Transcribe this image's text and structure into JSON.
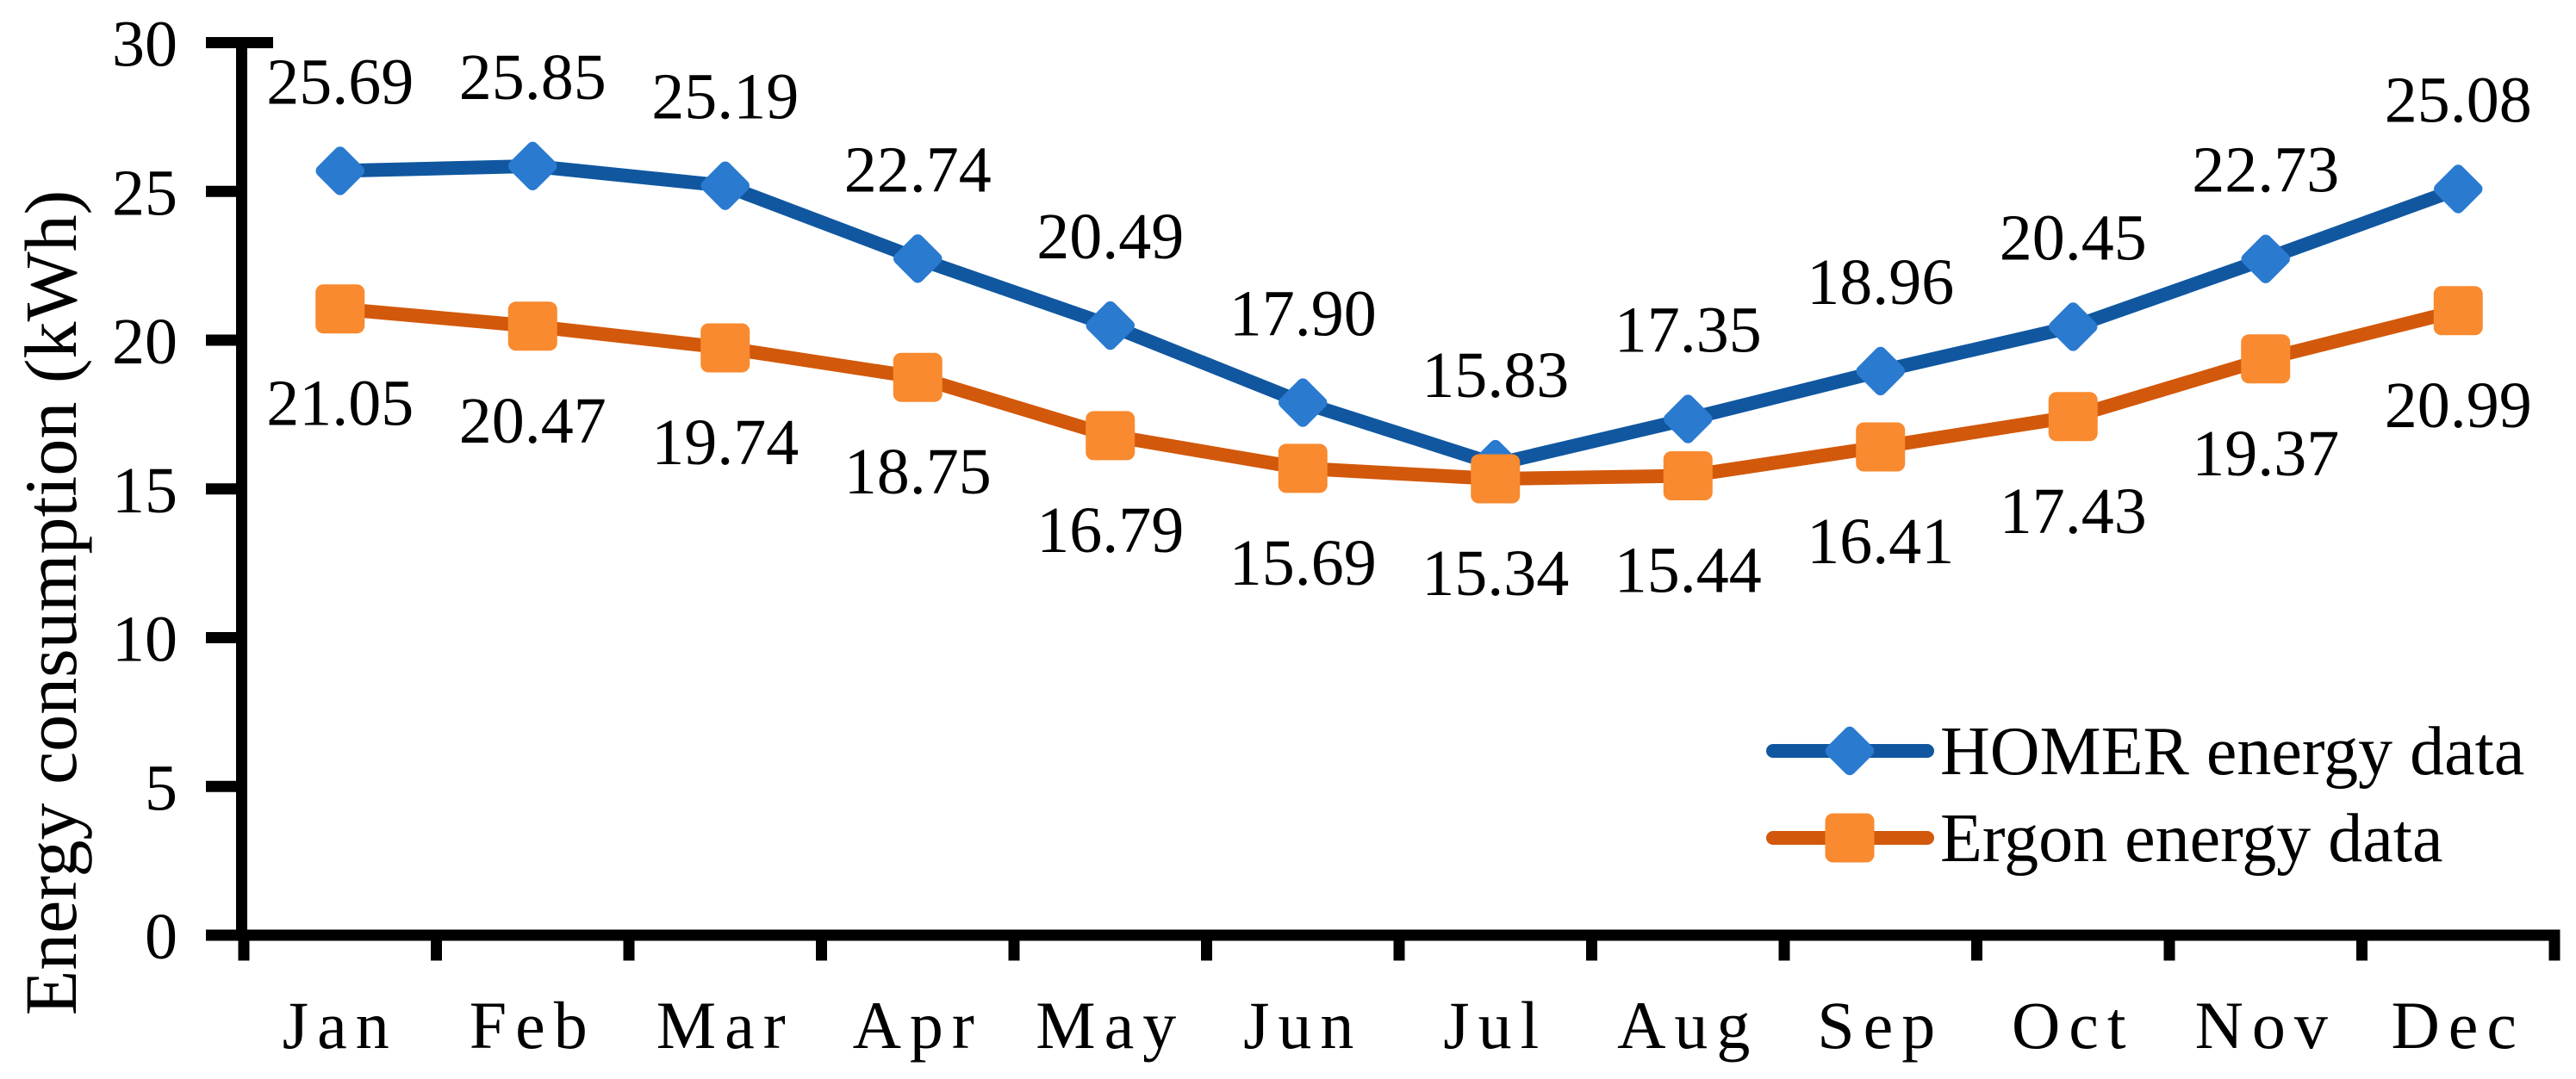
{
  "chart_data": {
    "type": "line",
    "title": "",
    "xlabel": "",
    "ylabel": "Energy consumption (kWh)",
    "categories": [
      "Jan",
      "Feb",
      "Mar",
      "Apr",
      "May",
      "Jun",
      "Jul",
      "Aug",
      "Sep",
      "Oct",
      "Nov",
      "Dec"
    ],
    "y_ticks": [
      0,
      5,
      10,
      15,
      20,
      25,
      30
    ],
    "ylim": [
      0,
      30
    ],
    "grid": false,
    "legend_position": "inside-bottom-right",
    "value_decimals": 2,
    "series": [
      {
        "name": "HOMER energy data",
        "marker": "diamond",
        "line_color": "#1057A0",
        "marker_color": "#2A7AD0",
        "label_position": "above",
        "values": [
          25.69,
          25.85,
          25.19,
          22.74,
          20.49,
          17.9,
          15.83,
          17.35,
          18.96,
          20.45,
          22.73,
          25.08
        ]
      },
      {
        "name": "Ergon energy data",
        "marker": "square",
        "line_color": "#D2580B",
        "marker_color": "#F98A2F",
        "label_position": "below",
        "values": [
          21.05,
          20.47,
          19.74,
          18.75,
          16.79,
          15.69,
          15.34,
          15.44,
          16.41,
          17.43,
          19.37,
          20.99
        ]
      }
    ],
    "axis_color": "#000000",
    "text_color": "#000000"
  }
}
